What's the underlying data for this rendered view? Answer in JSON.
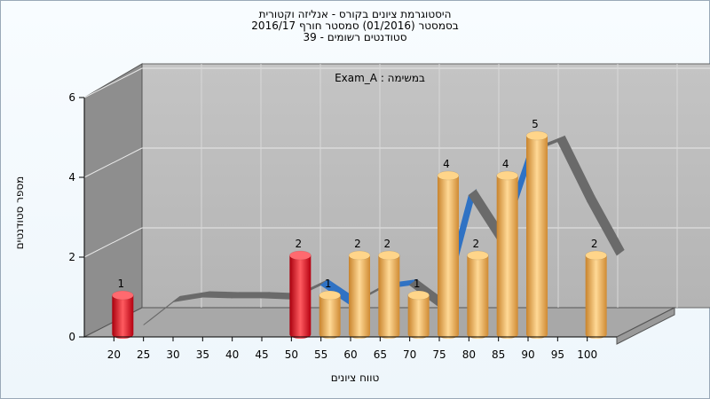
{
  "chart_data": {
    "type": "bar",
    "title_lines": [
      "היסטוגרמת ציונים בקורס - אנליזה וקטורית",
      "בסמסטר (01/2016) סמסטר חורף 2016/17",
      "סטודנטים רשומים - 39"
    ],
    "annotation": "Exam_A : במשימה",
    "xlabel": "טווח ציונים",
    "ylabel": "מספר סטודנטים",
    "x_ticks": [
      "20",
      "25",
      "30",
      "35",
      "40",
      "45",
      "50",
      "55",
      "60",
      "65",
      "70",
      "75",
      "80",
      "85",
      "90",
      "95",
      "100"
    ],
    "y_ticks": [
      "0",
      "2",
      "4",
      "6"
    ],
    "ylim": [
      0,
      6
    ],
    "bars": [
      {
        "x": 20,
        "value": 1,
        "label": "1",
        "color": "red"
      },
      {
        "x": 50,
        "value": 2,
        "label": "2",
        "color": "red"
      },
      {
        "x": 55,
        "value": 1,
        "label": "1",
        "color": "orange"
      },
      {
        "x": 60,
        "value": 2,
        "label": "2",
        "color": "orange"
      },
      {
        "x": 65,
        "value": 2,
        "label": "2",
        "color": "orange"
      },
      {
        "x": 70,
        "value": 1,
        "label": "1",
        "color": "orange"
      },
      {
        "x": 75,
        "value": 4,
        "label": "4",
        "color": "orange"
      },
      {
        "x": 80,
        "value": 2,
        "label": "2",
        "color": "orange"
      },
      {
        "x": 85,
        "value": 4,
        "label": "4",
        "color": "orange"
      },
      {
        "x": 90,
        "value": 5,
        "label": "5",
        "color": "orange"
      },
      {
        "x": 100,
        "value": 2,
        "label": "2",
        "color": "orange"
      }
    ],
    "trend_line": [
      {
        "x": 25,
        "y": 0.3
      },
      {
        "x": 30,
        "y": 0.88
      },
      {
        "x": 35,
        "y": 1.0
      },
      {
        "x": 40,
        "y": 0.98
      },
      {
        "x": 45,
        "y": 0.98
      },
      {
        "x": 50,
        "y": 0.95
      },
      {
        "x": 55,
        "y": 1.3
      },
      {
        "x": 60,
        "y": 0.8
      },
      {
        "x": 65,
        "y": 1.2
      },
      {
        "x": 70,
        "y": 1.3
      },
      {
        "x": 75,
        "y": 0.75
      },
      {
        "x": 80,
        "y": 3.55
      },
      {
        "x": 85,
        "y": 2.4
      },
      {
        "x": 90,
        "y": 4.6
      },
      {
        "x": 95,
        "y": 4.9
      },
      {
        "x": 100,
        "y": 3.4
      },
      {
        "x": 105,
        "y": 2.05
      }
    ],
    "colors": {
      "red": "#e8202a",
      "orange": "#f0b35a",
      "wall_back": "#bcbcbc",
      "wall_left": "#8e8e8e",
      "floor": "#a8a8a8",
      "ribbon_front": "#2f72c4",
      "ribbon_back": "#6a6a6a"
    },
    "grid": true,
    "legend": "none"
  }
}
